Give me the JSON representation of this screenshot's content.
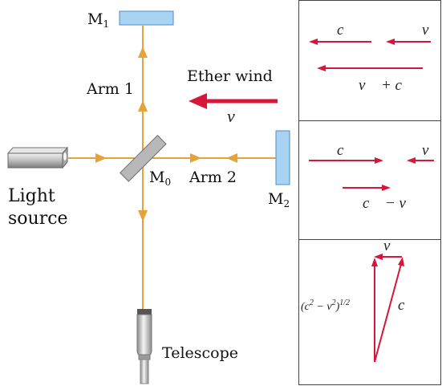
{
  "labels": {
    "m1": "M",
    "m1_sub": "1",
    "m2": "M",
    "m2_sub": "2",
    "m0": "M",
    "m0_sub": "0",
    "arm1": "Arm 1",
    "arm2": "Arm 2",
    "ether_wind": "Ether wind",
    "v_vec": "v⃗",
    "light_source_line1": "Light",
    "light_source_line2": "source",
    "telescope": "Telescope"
  },
  "panel1": {
    "c": "c⃗",
    "v": "v⃗",
    "sum": "v⃗ + c⃗"
  },
  "panel2": {
    "c": "c⃗",
    "v": "v⃗",
    "diff": "c⃗ − v⃗"
  },
  "panel3": {
    "v": "v⃗",
    "c": "c⃗",
    "perp_base": "(c",
    "perp_exp1": "2",
    "perp_mid": " − v",
    "perp_exp2": "2",
    "perp_close": ")",
    "perp_exp3": "1/2"
  },
  "colors": {
    "beam": "#e8a23a",
    "vector": "#d6173a",
    "mirror_fill": "#a9d3f2",
    "mirror_stroke": "#4d8ec7",
    "splitter": "#b8b8b8",
    "panel_border": "#444444"
  }
}
